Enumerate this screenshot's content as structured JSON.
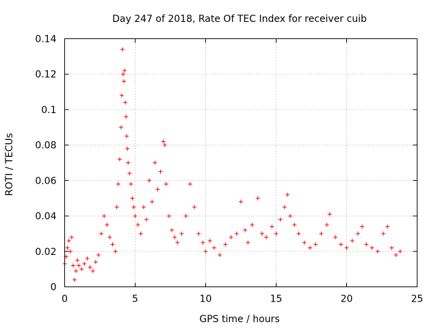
{
  "chart_data": {
    "type": "scatter",
    "title": "Day 247 of 2018, Rate Of TEC Index for receiver cuib",
    "xlabel": "GPS time / hours",
    "ylabel": "ROTI / TECUs",
    "xlim": [
      0,
      25
    ],
    "ylim": [
      0,
      0.14
    ],
    "x_ticks": [
      0,
      5,
      10,
      15,
      20,
      25
    ],
    "x_tick_labels": [
      "0",
      "5",
      "10",
      "15",
      "20",
      "25"
    ],
    "y_ticks": [
      0,
      0.02,
      0.04,
      0.06,
      0.08,
      0.1,
      0.12,
      0.14
    ],
    "y_tick_labels": [
      "0",
      "0.02",
      "0.04",
      "0.06",
      "0.08",
      "0.1",
      "0.12",
      "0.14"
    ],
    "grid": true,
    "marker": "+",
    "color": "#ff0000",
    "series": [
      {
        "name": "ROTI",
        "points": [
          [
            0.0,
            0.013
          ],
          [
            0.1,
            0.017
          ],
          [
            0.2,
            0.022
          ],
          [
            0.3,
            0.026
          ],
          [
            0.4,
            0.02
          ],
          [
            0.5,
            0.028
          ],
          [
            0.6,
            0.012
          ],
          [
            0.7,
            0.004
          ],
          [
            0.8,
            0.009
          ],
          [
            0.9,
            0.015
          ],
          [
            1.0,
            0.012
          ],
          [
            1.2,
            0.01
          ],
          [
            1.4,
            0.013
          ],
          [
            1.6,
            0.016
          ],
          [
            1.8,
            0.011
          ],
          [
            2.0,
            0.009
          ],
          [
            2.2,
            0.014
          ],
          [
            2.4,
            0.018
          ],
          [
            2.6,
            0.03
          ],
          [
            2.8,
            0.04
          ],
          [
            3.0,
            0.035
          ],
          [
            3.2,
            0.028
          ],
          [
            3.4,
            0.024
          ],
          [
            3.6,
            0.02
          ],
          [
            3.7,
            0.045
          ],
          [
            3.8,
            0.058
          ],
          [
            3.9,
            0.072
          ],
          [
            4.0,
            0.09
          ],
          [
            4.05,
            0.108
          ],
          [
            4.1,
            0.134
          ],
          [
            4.15,
            0.12
          ],
          [
            4.2,
            0.116
          ],
          [
            4.25,
            0.122
          ],
          [
            4.3,
            0.104
          ],
          [
            4.35,
            0.096
          ],
          [
            4.4,
            0.085
          ],
          [
            4.45,
            0.078
          ],
          [
            4.5,
            0.07
          ],
          [
            4.6,
            0.064
          ],
          [
            4.7,
            0.058
          ],
          [
            4.8,
            0.05
          ],
          [
            4.9,
            0.045
          ],
          [
            5.0,
            0.04
          ],
          [
            5.2,
            0.035
          ],
          [
            5.4,
            0.03
          ],
          [
            5.6,
            0.045
          ],
          [
            5.8,
            0.038
          ],
          [
            6.0,
            0.06
          ],
          [
            6.2,
            0.048
          ],
          [
            6.4,
            0.07
          ],
          [
            6.6,
            0.055
          ],
          [
            6.8,
            0.065
          ],
          [
            7.0,
            0.082
          ],
          [
            7.1,
            0.08
          ],
          [
            7.2,
            0.058
          ],
          [
            7.4,
            0.04
          ],
          [
            7.6,
            0.032
          ],
          [
            7.8,
            0.028
          ],
          [
            8.0,
            0.025
          ],
          [
            8.3,
            0.03
          ],
          [
            8.6,
            0.04
          ],
          [
            8.9,
            0.058
          ],
          [
            9.2,
            0.045
          ],
          [
            9.5,
            0.03
          ],
          [
            9.8,
            0.025
          ],
          [
            10.0,
            0.02
          ],
          [
            10.3,
            0.026
          ],
          [
            10.6,
            0.022
          ],
          [
            11.0,
            0.018
          ],
          [
            11.4,
            0.024
          ],
          [
            11.8,
            0.028
          ],
          [
            12.2,
            0.03
          ],
          [
            12.5,
            0.048
          ],
          [
            12.8,
            0.032
          ],
          [
            13.0,
            0.025
          ],
          [
            13.3,
            0.035
          ],
          [
            13.7,
            0.05
          ],
          [
            14.0,
            0.03
          ],
          [
            14.3,
            0.028
          ],
          [
            14.7,
            0.034
          ],
          [
            15.0,
            0.03
          ],
          [
            15.3,
            0.038
          ],
          [
            15.6,
            0.045
          ],
          [
            15.8,
            0.052
          ],
          [
            16.0,
            0.04
          ],
          [
            16.3,
            0.035
          ],
          [
            16.6,
            0.03
          ],
          [
            17.0,
            0.025
          ],
          [
            17.4,
            0.022
          ],
          [
            17.8,
            0.024
          ],
          [
            18.2,
            0.03
          ],
          [
            18.6,
            0.035
          ],
          [
            18.8,
            0.041
          ],
          [
            19.2,
            0.028
          ],
          [
            19.6,
            0.024
          ],
          [
            20.0,
            0.022
          ],
          [
            20.4,
            0.026
          ],
          [
            20.8,
            0.03
          ],
          [
            21.1,
            0.034
          ],
          [
            21.4,
            0.024
          ],
          [
            21.8,
            0.022
          ],
          [
            22.2,
            0.02
          ],
          [
            22.6,
            0.03
          ],
          [
            22.9,
            0.034
          ],
          [
            23.2,
            0.022
          ],
          [
            23.5,
            0.018
          ],
          [
            23.8,
            0.02
          ]
        ]
      }
    ]
  }
}
